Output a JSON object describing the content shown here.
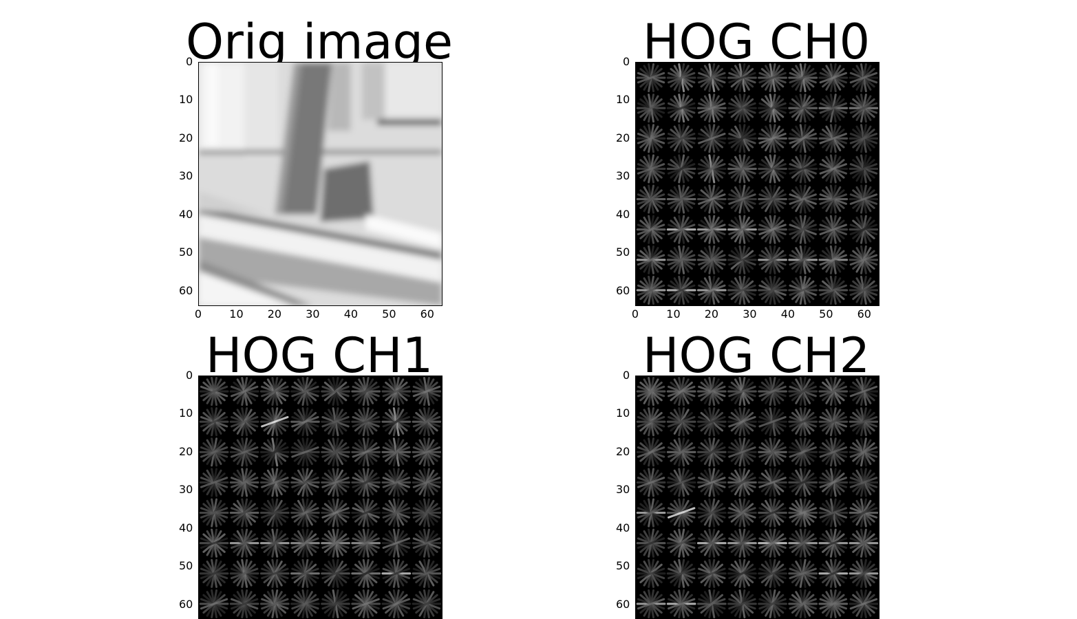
{
  "chart_data": [
    {
      "type": "heatmap",
      "title": "Orig image",
      "colormap": "gray",
      "image_size": [
        64,
        64
      ],
      "xticks": [
        "0",
        "10",
        "20",
        "30",
        "40",
        "50",
        "60"
      ],
      "yticks": [
        "0",
        "10",
        "20",
        "30",
        "40",
        "50",
        "60"
      ],
      "xlim": [
        0,
        64
      ],
      "ylim": [
        64,
        0
      ],
      "grid": false,
      "content": "grayscale street scene: bright wall with dark vertical post near x=25, curb and road diagonal in lower half"
    },
    {
      "type": "heatmap",
      "title": "HOG CH0",
      "colormap": "gray",
      "image_size": [
        64,
        64
      ],
      "cells": [
        8,
        8
      ],
      "xticks": [
        "0",
        "10",
        "20",
        "30",
        "40",
        "50",
        "60"
      ],
      "yticks": [
        "0",
        "10",
        "20",
        "30",
        "40",
        "50",
        "60"
      ],
      "xlim": [
        0,
        64
      ],
      "ylim": [
        64,
        0
      ],
      "grid": false
    },
    {
      "type": "heatmap",
      "title": "HOG CH1",
      "colormap": "gray",
      "image_size": [
        64,
        64
      ],
      "cells": [
        8,
        8
      ],
      "yticks": [
        "0",
        "10",
        "20",
        "30",
        "40",
        "50",
        "60"
      ],
      "xlim": [
        0,
        64
      ],
      "ylim": [
        64,
        0
      ],
      "grid": false
    },
    {
      "type": "heatmap",
      "title": "HOG CH2",
      "colormap": "gray",
      "image_size": [
        64,
        64
      ],
      "cells": [
        8,
        8
      ],
      "yticks": [
        "0",
        "10",
        "20",
        "30",
        "40",
        "50",
        "60"
      ],
      "xlim": [
        0,
        64
      ],
      "ylim": [
        64,
        0
      ],
      "grid": false
    }
  ]
}
